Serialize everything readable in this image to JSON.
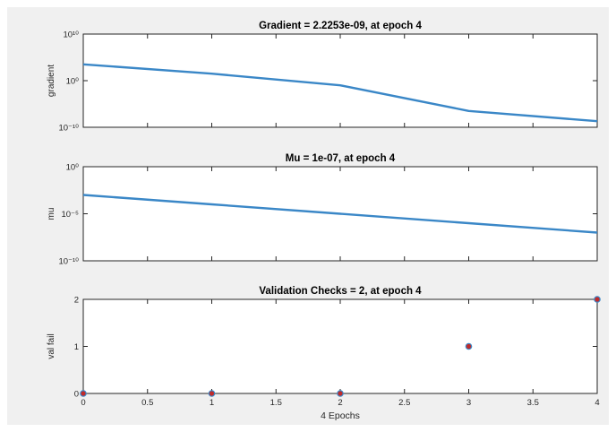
{
  "chart_data": [
    {
      "type": "line",
      "title": "Gradient = 2.2253e-09, at epoch 4",
      "xlabel": "",
      "ylabel": "gradient",
      "yscale": "log",
      "xlim": [
        0,
        4
      ],
      "ylim_exp": [
        -10,
        10
      ],
      "x": [
        0,
        1,
        2,
        3,
        4
      ],
      "y_exp": [
        3.5,
        1.5,
        -1,
        -6.5,
        -8.7
      ],
      "ytick_labels": [
        "10⁻¹⁰",
        "10⁰",
        "10¹⁰"
      ],
      "ytick_exp": [
        -10,
        0,
        10
      ],
      "color": "#3a87c7"
    },
    {
      "type": "line",
      "title": "Mu = 1e-07, at epoch 4",
      "xlabel": "",
      "ylabel": "mu",
      "yscale": "log",
      "xlim": [
        0,
        4
      ],
      "ylim_exp": [
        -10,
        0
      ],
      "x": [
        0,
        1,
        2,
        3,
        4
      ],
      "y_exp": [
        -3,
        -4,
        -5,
        -6,
        -7
      ],
      "ytick_labels": [
        "10⁻¹⁰",
        "10⁻⁵",
        "10⁰"
      ],
      "ytick_exp": [
        -10,
        -5,
        0
      ],
      "color": "#3a87c7"
    },
    {
      "type": "scatter",
      "title": "Validation Checks = 2, at epoch 4",
      "xlabel": "4 Epochs",
      "ylabel": "val fail",
      "xlim": [
        0,
        4
      ],
      "ylim": [
        0,
        2
      ],
      "x": [
        0,
        1,
        2,
        3,
        4
      ],
      "y": [
        0,
        0,
        0,
        1,
        2
      ],
      "ytick_labels": [
        "0",
        "1",
        "2"
      ],
      "yticks": [
        0,
        1,
        2
      ],
      "xtick_labels": [
        "0",
        "0.5",
        "1",
        "1.5",
        "2",
        "2.5",
        "3",
        "3.5",
        "4"
      ],
      "xticks": [
        0,
        0.5,
        1,
        1.5,
        2,
        2.5,
        3,
        3.5,
        4
      ],
      "marker_fill": "#c02a2a",
      "marker_edge": "#3a87c7"
    }
  ]
}
